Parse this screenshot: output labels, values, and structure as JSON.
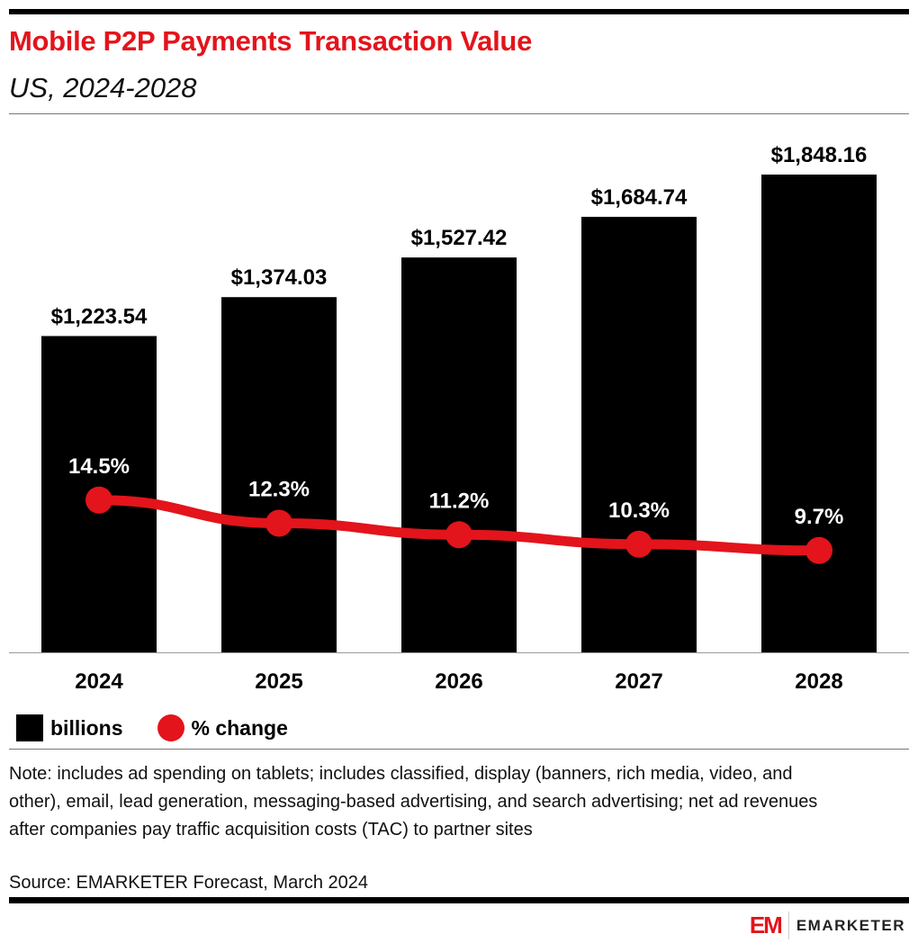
{
  "title": "Mobile P2P Payments Transaction Value",
  "subtitle": "US, 2024-2028",
  "chart_data": {
    "type": "bar+line",
    "categories": [
      "2024",
      "2025",
      "2026",
      "2027",
      "2028"
    ],
    "series": [
      {
        "name": "billions",
        "type": "bar",
        "color": "#000000",
        "values": [
          1223.54,
          1374.03,
          1527.42,
          1684.74,
          1848.16
        ],
        "labels": [
          "$1,223.54",
          "$1,374.03",
          "$1,527.42",
          "$1,684.74",
          "$1,848.16"
        ]
      },
      {
        "name": "% change",
        "type": "line",
        "color": "#e3141b",
        "values": [
          14.5,
          12.3,
          11.2,
          10.3,
          9.7
        ],
        "labels": [
          "14.5%",
          "12.3%",
          "11.2%",
          "10.3%",
          "9.7%"
        ]
      }
    ],
    "grid": false,
    "legend_placement": "bottom-left"
  },
  "legend": {
    "bars": "billions",
    "line": "% change"
  },
  "note": "Note: includes ad spending on tablets; includes classified, display (banners, rich media, video, and other), email, lead generation, messaging-based advertising, and search advertising; net ad revenues after companies pay traffic acquisition costs (TAC) to partner sites",
  "source": "Source: EMARKETER Forecast, March 2024",
  "brand": {
    "mark": "EM",
    "name": "EMARKETER"
  }
}
